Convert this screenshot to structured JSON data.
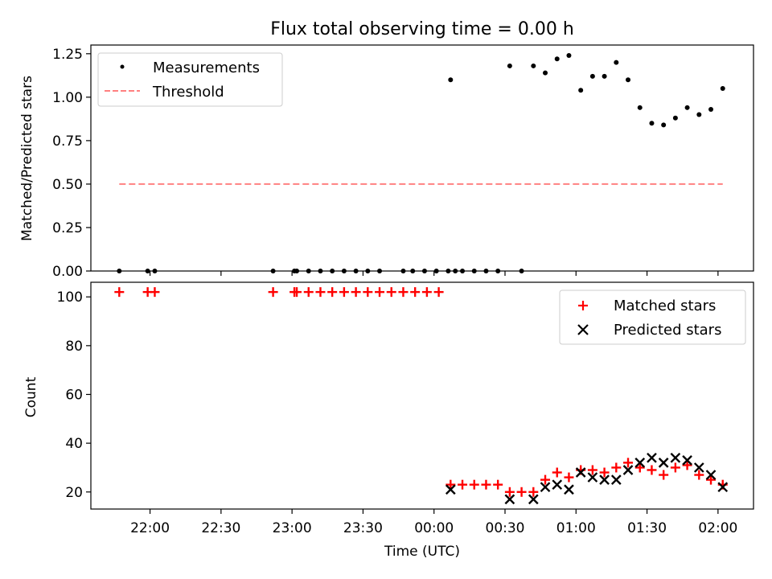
{
  "figure_title": "Flux total observing time = 0.00 h",
  "chart_data": [
    {
      "type": "scatter",
      "panel": "top",
      "ylabel": "Matched/Predicted stars",
      "ylim": [
        0,
        1.3
      ],
      "yticks": [
        0,
        0.25,
        0.5,
        0.75,
        1.0,
        1.25
      ],
      "ytick_labels": [
        "0.00",
        "0.25",
        "0.50",
        "0.75",
        "1.00",
        "1.25"
      ],
      "legend_position": "top-left",
      "series": [
        {
          "name": "Measurements",
          "kind": "points",
          "color": "#000000",
          "x": [
            "21:47",
            "21:59",
            "22:02",
            "22:52",
            "23:01",
            "23:02",
            "23:07",
            "23:12",
            "23:17",
            "23:22",
            "23:27",
            "23:32",
            "23:37",
            "23:47",
            "23:51",
            "23:56",
            "24:01",
            "24:06",
            "24:09",
            "24:07",
            "24:12",
            "24:17",
            "24:22",
            "24:27",
            "24:32",
            "24:37",
            "24:42",
            "24:47",
            "24:52",
            "24:57",
            "25:02",
            "25:07",
            "25:12",
            "25:17",
            "25:22",
            "25:27",
            "25:32",
            "25:37",
            "25:42",
            "25:47",
            "25:52",
            "25:57",
            "26:02"
          ],
          "y": [
            0,
            0,
            0,
            0,
            0,
            0,
            0,
            0,
            0,
            0,
            0,
            0,
            0,
            0,
            0,
            0,
            0,
            0,
            0,
            1.1,
            0,
            0,
            0,
            0,
            1.18,
            0,
            1.18,
            1.14,
            1.22,
            1.24,
            1.04,
            1.12,
            1.12,
            1.2,
            1.1,
            0.94,
            0.85,
            0.84,
            0.88,
            0.94,
            0.9,
            0.93,
            1.05
          ]
        },
        {
          "name": "Threshold",
          "kind": "dashed-line",
          "color": "#ff8080",
          "x": [
            "21:47",
            "26:02"
          ],
          "y": [
            0.5,
            0.5
          ]
        }
      ]
    },
    {
      "type": "scatter",
      "panel": "bottom",
      "xlabel": "Time (UTC)",
      "ylabel": "Count",
      "ylim": [
        13,
        106
      ],
      "yticks": [
        20,
        40,
        60,
        80,
        100
      ],
      "ytick_labels": [
        "20",
        "40",
        "60",
        "80",
        "100"
      ],
      "xlim": [
        "21:35",
        "26:15"
      ],
      "xticks": [
        "22:00",
        "22:30",
        "23:00",
        "23:30",
        "24:00",
        "24:30",
        "25:00",
        "25:30",
        "26:00"
      ],
      "xtick_labels": [
        "22:00",
        "22:30",
        "23:00",
        "23:30",
        "00:00",
        "00:30",
        "01:00",
        "01:30",
        "02:00"
      ],
      "legend_position": "top-right",
      "series": [
        {
          "name": "Matched stars",
          "marker": "+",
          "color": "#ff0000",
          "x": [
            "21:47",
            "21:59",
            "22:02",
            "22:52",
            "23:01",
            "23:02",
            "23:07",
            "23:12",
            "23:17",
            "23:22",
            "23:27",
            "23:32",
            "23:37",
            "23:42",
            "23:47",
            "23:52",
            "23:57",
            "24:02",
            "24:07",
            "24:12",
            "24:17",
            "24:22",
            "24:27",
            "24:32",
            "24:37",
            "24:42",
            "24:47",
            "24:52",
            "24:57",
            "25:02",
            "25:07",
            "25:12",
            "25:17",
            "25:22",
            "25:27",
            "25:32",
            "25:37",
            "25:42",
            "25:47",
            "25:52",
            "25:57",
            "26:02"
          ],
          "y": [
            102,
            102,
            102,
            102,
            102,
            102,
            102,
            102,
            102,
            102,
            102,
            102,
            102,
            102,
            102,
            102,
            102,
            102,
            23,
            23,
            23,
            23,
            23,
            20,
            20,
            20,
            25,
            28,
            26,
            29,
            29,
            28,
            30,
            32,
            30,
            29,
            27,
            30,
            31,
            27,
            25,
            23
          ]
        },
        {
          "name": "Predicted stars",
          "marker": "x",
          "color": "#000000",
          "x": [
            "24:07",
            "24:32",
            "24:42",
            "24:47",
            "24:52",
            "24:57",
            "25:02",
            "25:07",
            "25:12",
            "25:17",
            "25:22",
            "25:27",
            "25:32",
            "25:37",
            "25:42",
            "25:47",
            "25:52",
            "25:57",
            "26:02"
          ],
          "y": [
            21,
            17,
            17,
            22,
            23,
            21,
            28,
            26,
            25,
            25,
            29,
            32,
            34,
            32,
            34,
            33,
            30,
            27,
            22
          ]
        }
      ]
    }
  ]
}
